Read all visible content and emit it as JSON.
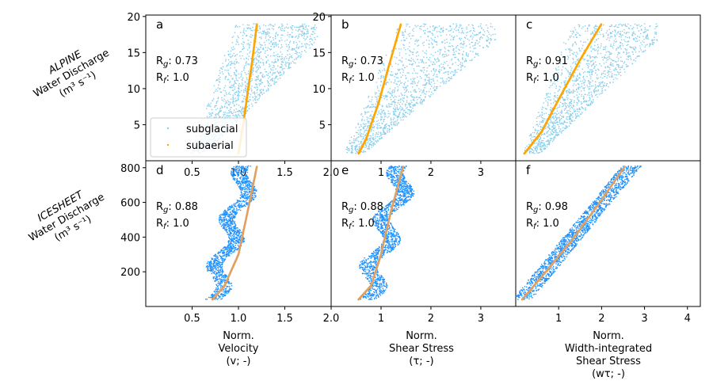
{
  "colors": {
    "alpine_subglacial": "#87ceeb",
    "icesheet_subglacial": "#1e90ff",
    "alpine_subaerial": "#ffa500",
    "icesheet_subaerial": "#e0a060"
  },
  "row_labels": [
    {
      "name_italic": "ALPINE",
      "line2": "Water Discharge",
      "line3": "(m³ s⁻¹)"
    },
    {
      "name_italic": "ICESHEET",
      "line2": "Water Discharge",
      "line3": "(m³ s⁻¹)"
    }
  ],
  "x_labels": [
    [
      "Norm.",
      "Velocity",
      "(v; -)"
    ],
    [
      "Norm.",
      "Shear Stress",
      "(τ; -)"
    ],
    [
      "Norm.",
      "Width-integrated",
      "Shear Stress",
      "(wτ; -)"
    ]
  ],
  "legend": {
    "entries": [
      "subglacial",
      "subaerial"
    ]
  },
  "chart_data": [
    {
      "panel": "a",
      "type": "scatter",
      "row": "ALPINE",
      "x_ticks": [
        0.5,
        1.0,
        1.5,
        2.0
      ],
      "xlim": [
        0.0,
        2.0
      ],
      "y_ticks": [
        5,
        10,
        15,
        20
      ],
      "ylim": [
        0.0,
        20.2
      ],
      "Rg": "0.73",
      "Rf": "1.0",
      "series": [
        {
          "name": "subglacial",
          "x_range": [
            0.45,
            1.85
          ],
          "y_range": [
            1.0,
            19.0
          ],
          "cloud": "fan"
        },
        {
          "name": "subaerial",
          "x": [
            1.0,
            1.05,
            1.1,
            1.15,
            1.2
          ],
          "y": [
            1.0,
            5.0,
            9.5,
            14.0,
            19.0
          ]
        }
      ]
    },
    {
      "panel": "b",
      "type": "scatter",
      "row": "ALPINE",
      "x_ticks": [
        1,
        2,
        3
      ],
      "xlim": [
        0.0,
        3.7
      ],
      "y_ticks": [
        5,
        10,
        15,
        20
      ],
      "ylim": [
        0.0,
        20.2
      ],
      "Rg": "0.73",
      "Rf": "1.0",
      "series": [
        {
          "name": "subglacial",
          "x_range": [
            0.2,
            3.3
          ],
          "y_range": [
            1.0,
            19.0
          ],
          "cloud": "fan"
        },
        {
          "name": "subaerial",
          "x": [
            0.55,
            0.7,
            0.95,
            1.15,
            1.4
          ],
          "y": [
            1.0,
            3.0,
            8.0,
            13.0,
            19.0
          ]
        }
      ]
    },
    {
      "panel": "c",
      "type": "scatter",
      "row": "ALPINE",
      "x_ticks": [],
      "xlim": [
        0.0,
        4.3
      ],
      "y_ticks": [],
      "ylim": [
        0.0,
        20.2
      ],
      "Rg": "0.91",
      "Rf": "1.0",
      "series": [
        {
          "name": "subglacial",
          "x_range": [
            0.1,
            3.3
          ],
          "y_range": [
            1.0,
            19.0
          ],
          "cloud": "fan"
        },
        {
          "name": "subaerial",
          "x": [
            0.2,
            0.6,
            1.0,
            1.5,
            2.0
          ],
          "y": [
            1.0,
            4.0,
            8.5,
            14.0,
            19.0
          ]
        }
      ]
    },
    {
      "panel": "d",
      "type": "scatter",
      "row": "ICESHEET",
      "x_ticks": [
        0.5,
        1.0,
        1.5,
        2.0
      ],
      "xlim": [
        0.0,
        2.0
      ],
      "y_ticks": [
        200,
        400,
        600,
        800
      ],
      "ylim": [
        0,
        840
      ],
      "Rg": "0.88",
      "Rf": "1.0",
      "series": [
        {
          "name": "subglacial",
          "x_range": [
            0.62,
            1.32
          ],
          "y_range": [
            40,
            810
          ],
          "cloud": "wiggle"
        },
        {
          "name": "subaerial",
          "x": [
            0.72,
            0.85,
            1.0,
            1.1,
            1.2
          ],
          "y": [
            40,
            120,
            300,
            550,
            810
          ]
        }
      ]
    },
    {
      "panel": "e",
      "type": "scatter",
      "row": "ICESHEET",
      "x_ticks": [
        1,
        2,
        3
      ],
      "xlim": [
        0.0,
        3.7
      ],
      "y_ticks": [],
      "ylim": [
        0,
        840
      ],
      "Rg": "0.88",
      "Rf": "1.0",
      "series": [
        {
          "name": "subglacial",
          "x_range": [
            0.5,
            1.9
          ],
          "y_range": [
            40,
            810
          ],
          "cloud": "wiggle"
        },
        {
          "name": "subaerial",
          "x": [
            0.55,
            0.8,
            1.0,
            1.2,
            1.45
          ],
          "y": [
            40,
            120,
            300,
            550,
            810
          ]
        }
      ]
    },
    {
      "panel": "f",
      "type": "scatter",
      "row": "ICESHEET",
      "x_ticks": [
        1,
        2,
        3,
        4
      ],
      "xlim": [
        0.0,
        4.3
      ],
      "y_ticks": [],
      "ylim": [
        0,
        840
      ],
      "Rg": "0.98",
      "Rf": "1.0",
      "series": [
        {
          "name": "subglacial",
          "x_range": [
            0.15,
            2.7
          ],
          "y_range": [
            40,
            810
          ],
          "cloud": "band"
        },
        {
          "name": "subaerial",
          "x": [
            0.15,
            0.7,
            1.3,
            1.9,
            2.55
          ],
          "y": [
            40,
            200,
            380,
            580,
            810
          ]
        }
      ]
    }
  ]
}
